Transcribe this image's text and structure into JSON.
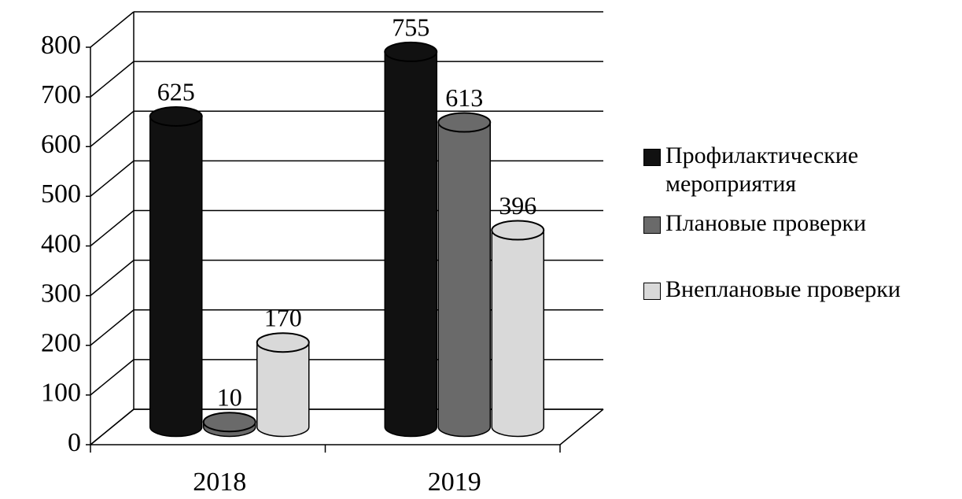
{
  "chart_data": {
    "type": "bar",
    "categories": [
      "2018",
      "2019"
    ],
    "series": [
      {
        "name": "Профилактические мероприятия",
        "color": "#111111",
        "values": [
          625,
          755
        ]
      },
      {
        "name": "Плановые проверки",
        "color": "#6a6a6a",
        "values": [
          10,
          613
        ]
      },
      {
        "name": "Внеплановые проверки",
        "color": "#d9d9d9",
        "values": [
          170,
          396
        ]
      }
    ],
    "ylim": [
      0,
      800
    ],
    "yticks": [
      0,
      100,
      200,
      300,
      400,
      500,
      600,
      700,
      800
    ],
    "grid": true,
    "legend": "right"
  }
}
